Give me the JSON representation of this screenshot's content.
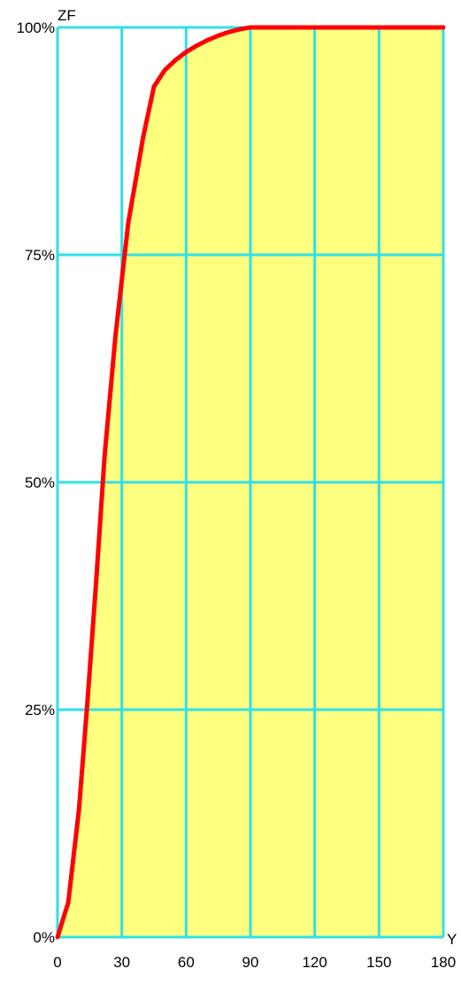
{
  "chart_data": {
    "type": "area",
    "xlabel": "Y",
    "ylabel": "ZF",
    "xlim": [
      0,
      180
    ],
    "ylim": [
      0,
      100
    ],
    "x_ticks": [
      0,
      30,
      60,
      90,
      120,
      150,
      180
    ],
    "x_tick_labels": [
      "0",
      "30",
      "60",
      "90",
      "120",
      "150",
      "180"
    ],
    "y_ticks": [
      0,
      25,
      50,
      75,
      100
    ],
    "y_tick_labels": [
      "0%",
      "25%",
      "50%",
      "75%",
      "100%"
    ],
    "grid": true,
    "series": [
      {
        "x": [
          0,
          5,
          10,
          14,
          18,
          22,
          27,
          33,
          40,
          45,
          50,
          55,
          60,
          65,
          70,
          75,
          80,
          85,
          90,
          180
        ],
        "y": [
          0,
          3.8,
          14,
          26,
          39,
          53,
          66,
          78.5,
          88,
          93.5,
          95.3,
          96.4,
          97.3,
          98,
          98.6,
          99.1,
          99.5,
          99.8,
          100,
          100
        ]
      }
    ],
    "colors": {
      "line": "#ff0000",
      "fill": "#ffff80",
      "grid": "#30e0e8"
    }
  }
}
